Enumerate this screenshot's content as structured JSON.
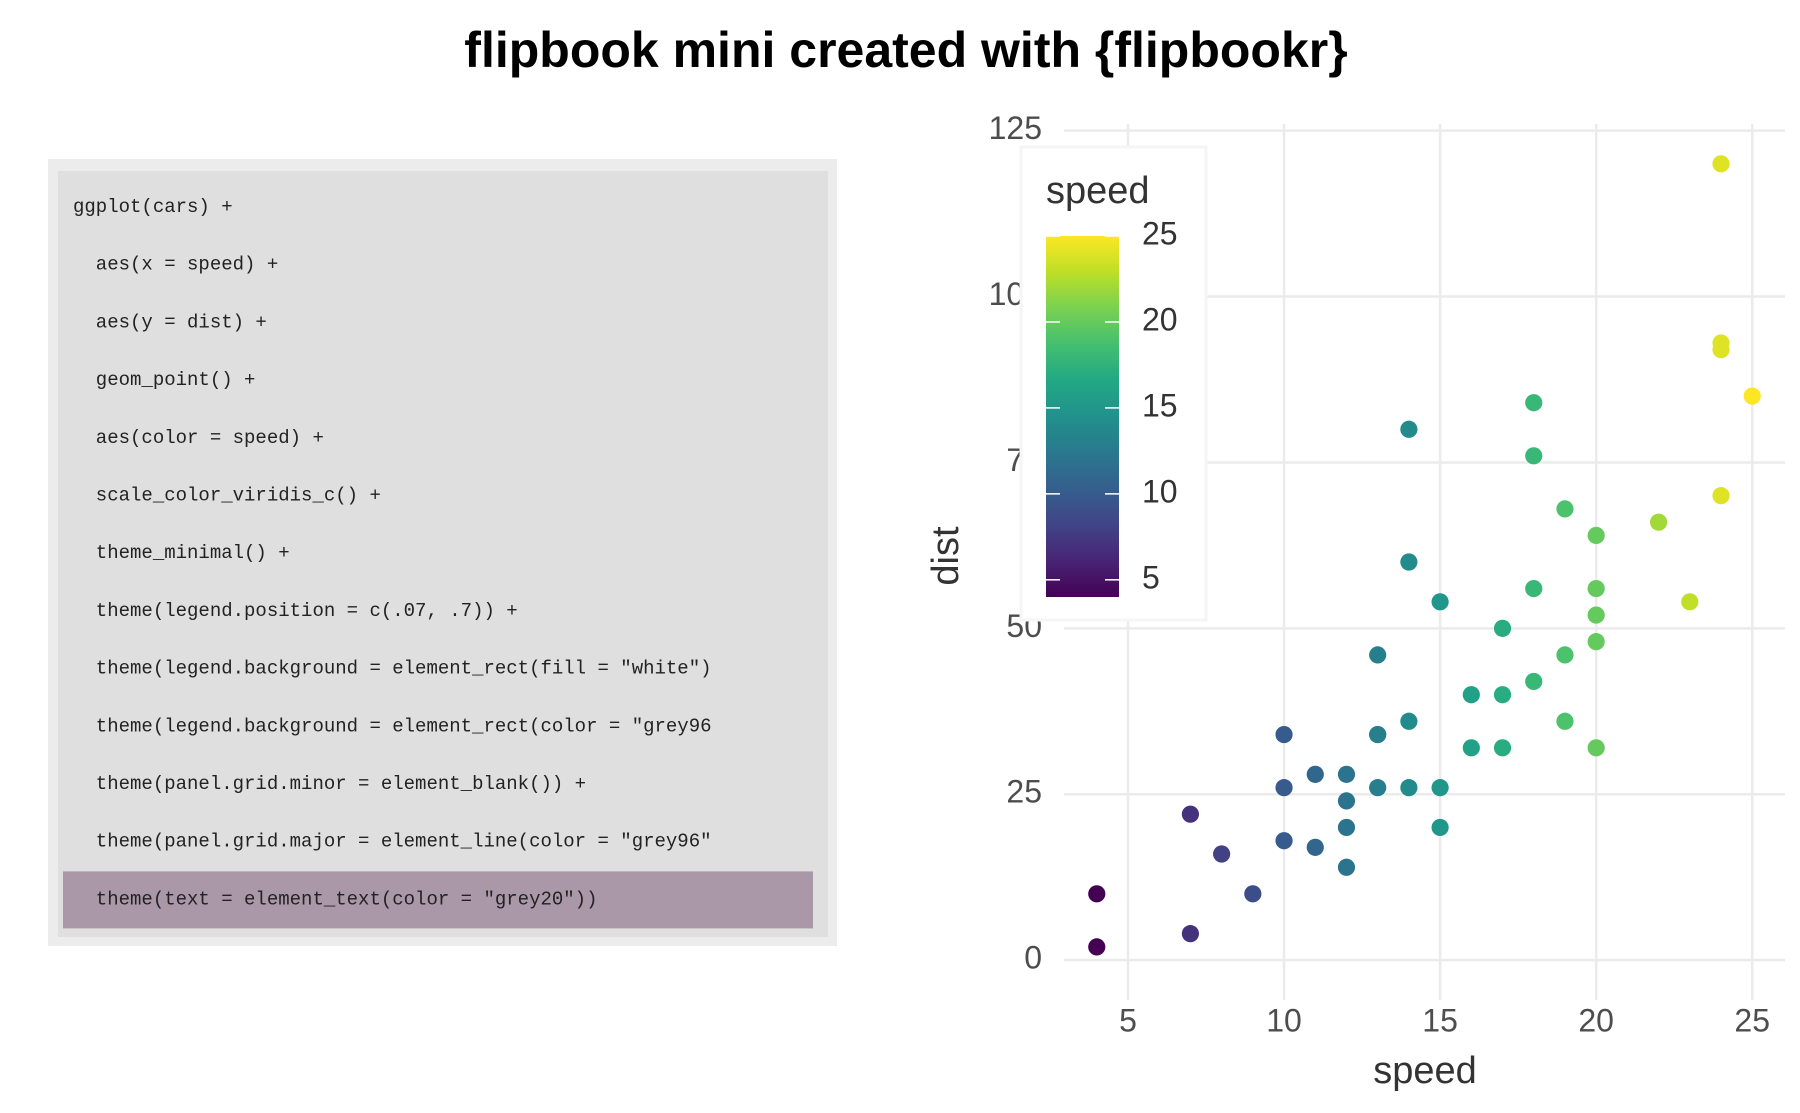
{
  "title": "flipbook mini created with {flipbookr}",
  "code": {
    "lines": [
      "ggplot(cars) +",
      "  aes(x = speed) +",
      "  aes(y = dist) +",
      "  geom_point() +",
      "  aes(color = speed) +",
      "  scale_color_viridis_c() +",
      "  theme_minimal() +",
      "  theme(legend.position = c(.07, .7)) +",
      "  theme(legend.background = element_rect(fill = \"white\")",
      "  theme(legend.background = element_rect(color = \"grey96",
      "  theme(panel.grid.minor = element_blank()) +",
      "  theme(panel.grid.major = element_line(color = \"grey96\"",
      "  theme(text = element_text(color = \"grey20\"))"
    ],
    "highlight": 12
  },
  "chart_data": {
    "type": "scatter",
    "x_label": "speed",
    "y_label": "dist",
    "x": [
      4,
      4,
      7,
      7,
      8,
      9,
      10,
      10,
      10,
      11,
      11,
      12,
      12,
      12,
      12,
      13,
      13,
      13,
      13,
      14,
      14,
      14,
      14,
      15,
      15,
      15,
      16,
      16,
      17,
      17,
      17,
      18,
      18,
      18,
      18,
      19,
      19,
      19,
      20,
      20,
      20,
      20,
      20,
      22,
      23,
      24,
      24,
      24,
      24,
      25
    ],
    "y": [
      2,
      10,
      4,
      22,
      16,
      10,
      18,
      26,
      34,
      17,
      28,
      14,
      20,
      24,
      28,
      26,
      34,
      34,
      46,
      26,
      36,
      60,
      80,
      20,
      26,
      54,
      32,
      40,
      32,
      40,
      50,
      42,
      56,
      76,
      84,
      36,
      46,
      68,
      32,
      48,
      52,
      56,
      64,
      66,
      54,
      70,
      92,
      93,
      120,
      85
    ],
    "xlim": [
      2.95,
      26.05
    ],
    "ylim": [
      -6,
      126
    ],
    "xticks": [
      5,
      10,
      15,
      20,
      25
    ],
    "yticks": [
      0,
      25,
      50,
      75,
      100,
      125
    ],
    "grid": true,
    "colormap": "viridis",
    "legend": {
      "title": "speed",
      "position": "top-left",
      "limits": [
        4,
        25
      ],
      "ticks": [
        5,
        10,
        15,
        20,
        25
      ]
    }
  }
}
